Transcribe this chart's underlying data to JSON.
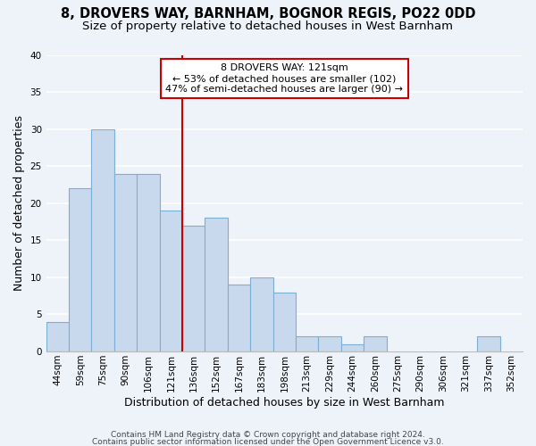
{
  "title": "8, DROVERS WAY, BARNHAM, BOGNOR REGIS, PO22 0DD",
  "subtitle": "Size of property relative to detached houses in West Barnham",
  "xlabel": "Distribution of detached houses by size in West Barnham",
  "ylabel": "Number of detached properties",
  "categories": [
    "44sqm",
    "59sqm",
    "75sqm",
    "90sqm",
    "106sqm",
    "121sqm",
    "136sqm",
    "152sqm",
    "167sqm",
    "183sqm",
    "198sqm",
    "213sqm",
    "229sqm",
    "244sqm",
    "260sqm",
    "275sqm",
    "290sqm",
    "306sqm",
    "321sqm",
    "337sqm",
    "352sqm"
  ],
  "values": [
    4,
    22,
    30,
    24,
    24,
    19,
    17,
    18,
    9,
    10,
    8,
    2,
    2,
    1,
    2,
    0,
    0,
    0,
    0,
    2,
    0
  ],
  "bar_color": "#c8d9ee",
  "bar_edge_color": "#7bafd4",
  "highlight_line_color": "#cc0000",
  "ylim": [
    0,
    40
  ],
  "yticks": [
    0,
    5,
    10,
    15,
    20,
    25,
    30,
    35,
    40
  ],
  "annotation_text": "8 DROVERS WAY: 121sqm\n← 53% of detached houses are smaller (102)\n47% of semi-detached houses are larger (90) →",
  "footer_line1": "Contains HM Land Registry data © Crown copyright and database right 2024.",
  "footer_line2": "Contains public sector information licensed under the Open Government Licence v3.0.",
  "background_color": "#eef2f9",
  "grid_color": "#ffffff",
  "title_fontsize": 10.5,
  "subtitle_fontsize": 9.5,
  "axis_label_fontsize": 9,
  "tick_fontsize": 7.5,
  "footer_fontsize": 6.5
}
